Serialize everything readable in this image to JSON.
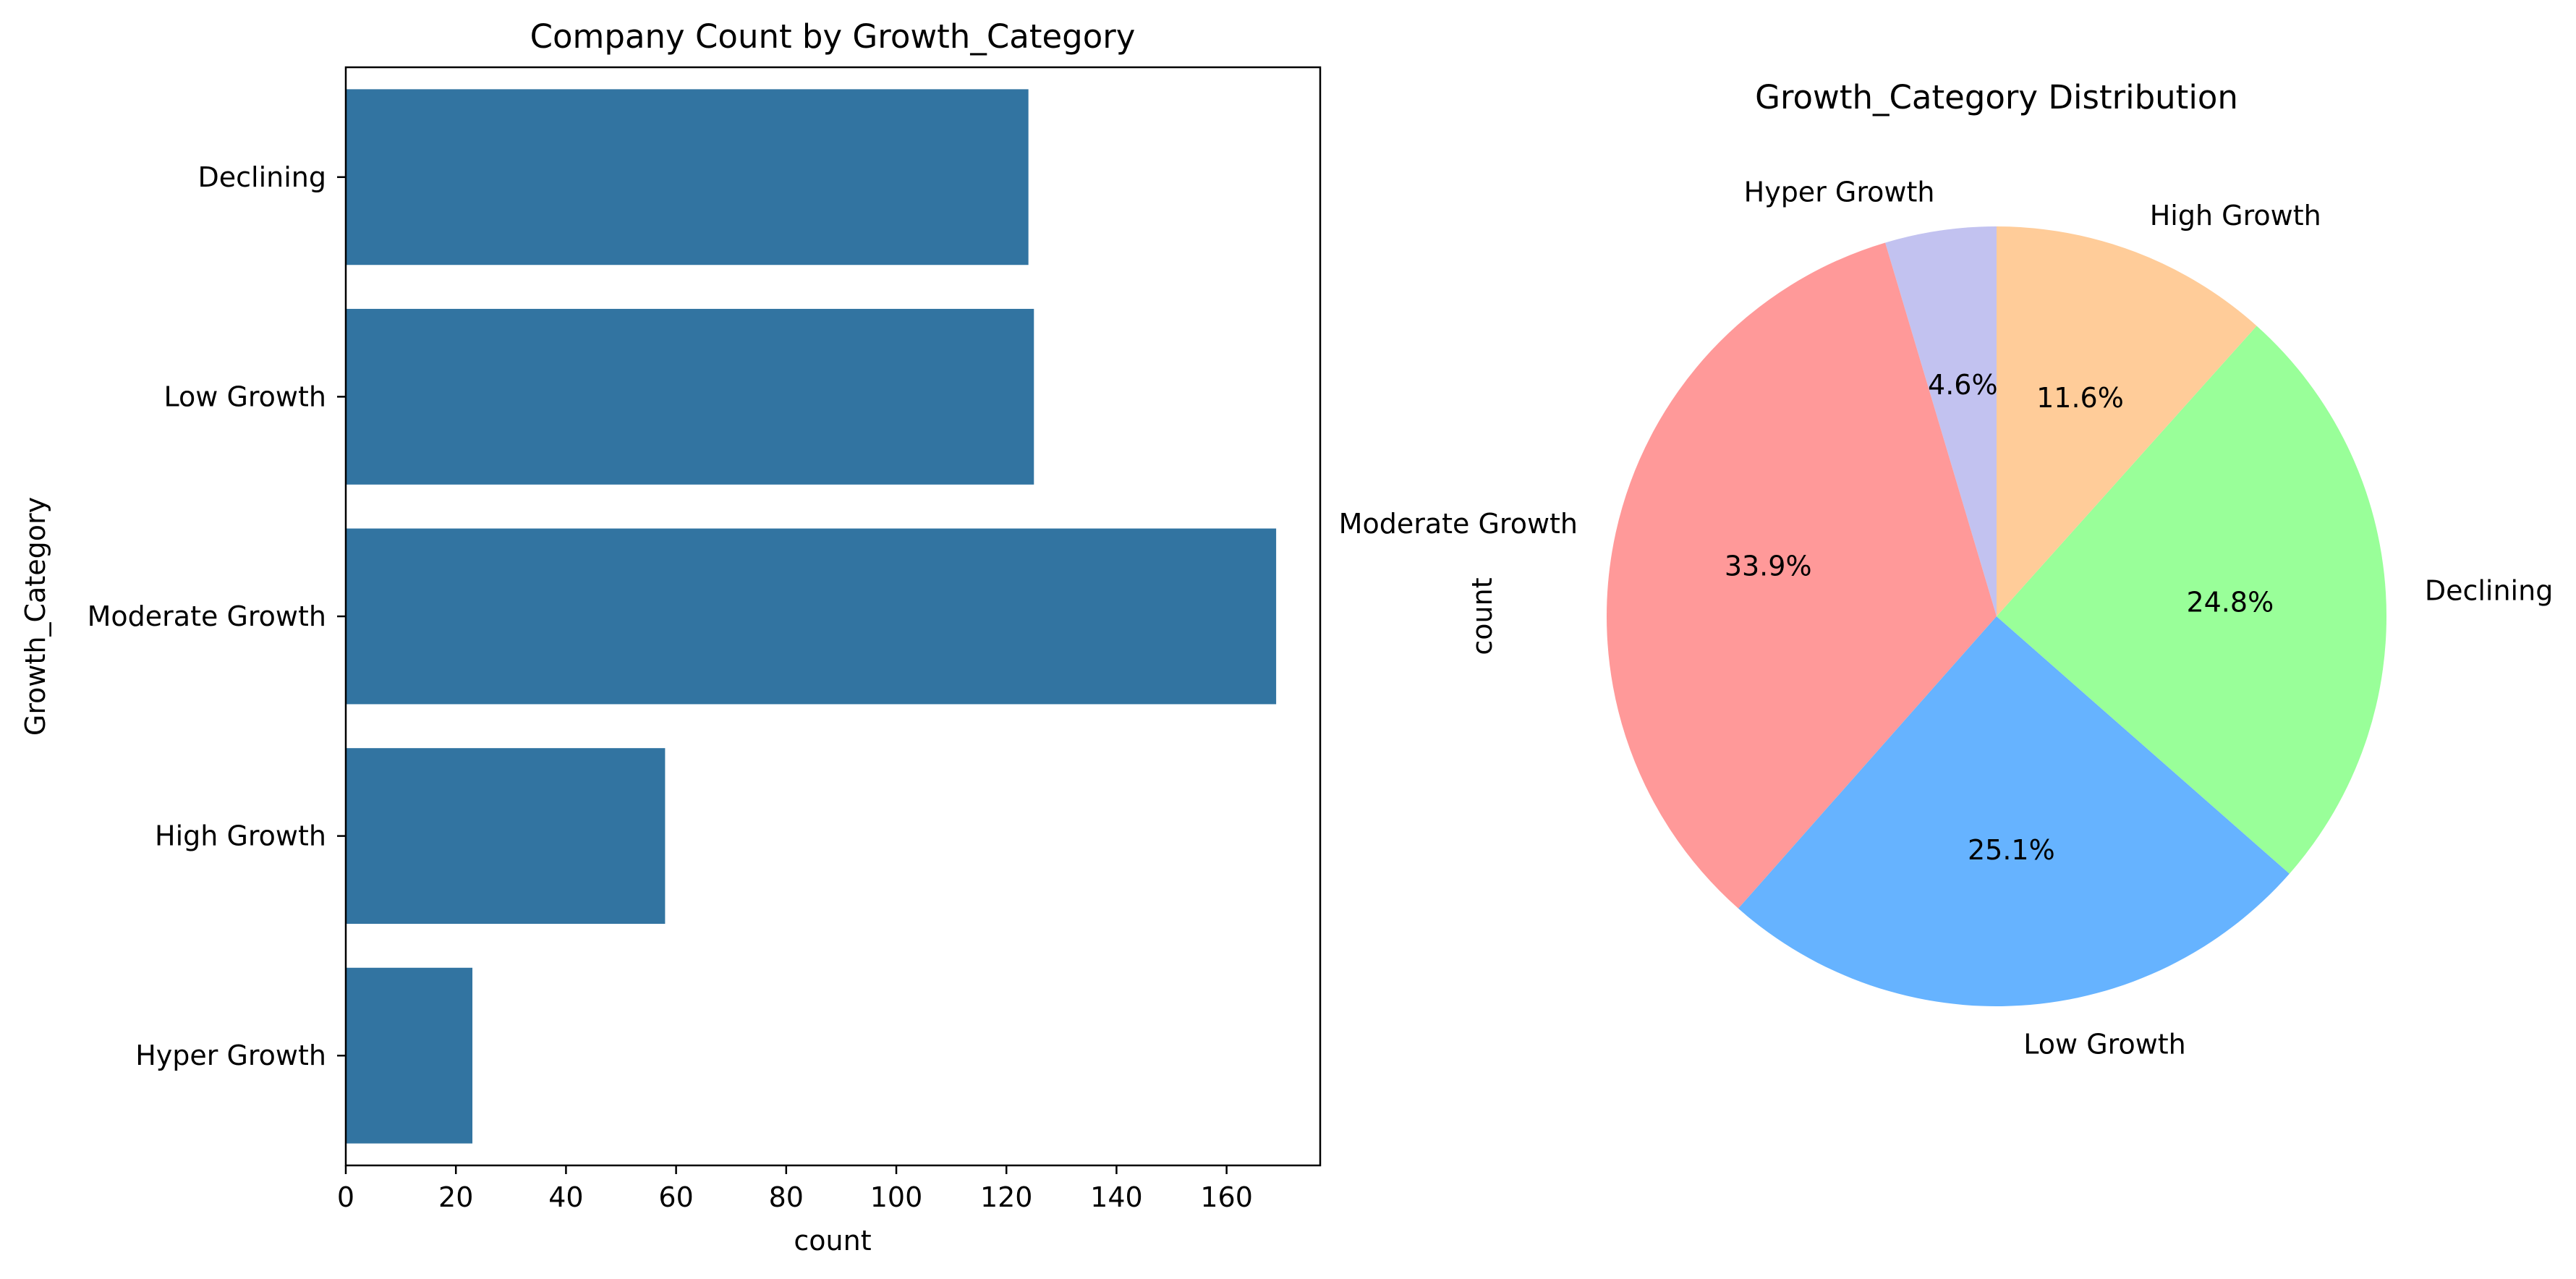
{
  "chart_data": [
    {
      "type": "bar",
      "orientation": "horizontal",
      "title": "Company Count by Growth_Category",
      "xlabel": "count",
      "ylabel": "Growth_Category",
      "categories": [
        "Declining",
        "Low Growth",
        "Moderate Growth",
        "High Growth",
        "Hyper Growth"
      ],
      "values": [
        124,
        125,
        169,
        58,
        23
      ],
      "xlim": [
        0,
        177
      ],
      "xticks": [
        0,
        20,
        40,
        60,
        80,
        100,
        120,
        140,
        160
      ],
      "color": "#3274a1",
      "grid": false
    },
    {
      "type": "pie",
      "title": "Growth_Category Distribution",
      "ylabel": "count",
      "start_angle": 90,
      "direction": "counterclockwise",
      "slices": [
        {
          "label": "Hyper Growth",
          "value": 23,
          "pct": "4.6%",
          "color": "#c2c2f0"
        },
        {
          "label": "Moderate Growth",
          "value": 169,
          "pct": "33.9%",
          "color": "#ff9999"
        },
        {
          "label": "Low Growth",
          "value": 125,
          "pct": "25.1%",
          "color": "#66b3ff"
        },
        {
          "label": "Declining",
          "value": 124,
          "pct": "24.8%",
          "color": "#99ff99"
        },
        {
          "label": "High Growth",
          "value": 58,
          "pct": "11.6%",
          "color": "#ffcc99"
        }
      ]
    }
  ]
}
